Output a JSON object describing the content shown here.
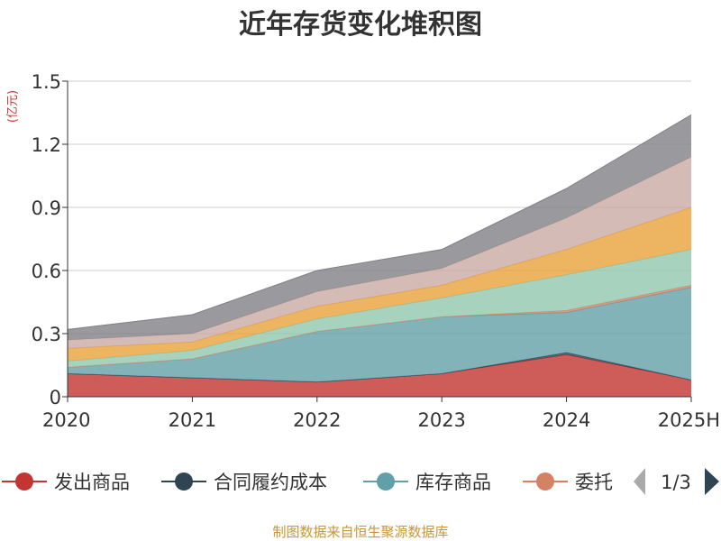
{
  "chart_data": {
    "type": "area",
    "stacked": true,
    "title": "近年存货变化堆积图",
    "unit_label": "(亿元)",
    "categories": [
      "2020",
      "2021",
      "2022",
      "2023",
      "2024",
      "2025H"
    ],
    "ylim": [
      0,
      1.5
    ],
    "yticks": [
      {
        "value": 0,
        "label": "0"
      },
      {
        "value": 0.3,
        "label": "0.3"
      },
      {
        "value": 0.6,
        "label": "0.6"
      },
      {
        "value": 0.9,
        "label": "0.9"
      },
      {
        "value": 1.2,
        "label": "1.2"
      },
      {
        "value": 1.5,
        "label": "1.5"
      }
    ],
    "grid": true,
    "series": [
      {
        "name": "发出商品",
        "color": "#c23531",
        "values": [
          0.11,
          0.09,
          0.07,
          0.11,
          0.2,
          0.08
        ]
      },
      {
        "name": "合同履约成本",
        "color": "#2f4554",
        "values": [
          0.0,
          0.0,
          0.0,
          0.0,
          0.01,
          0.0
        ]
      },
      {
        "name": "库存商品",
        "color": "#61a0a8",
        "values": [
          0.03,
          0.09,
          0.24,
          0.27,
          0.19,
          0.44
        ]
      },
      {
        "name": "委托加工物资",
        "color": "#d48265",
        "values": [
          0.0,
          0.0,
          0.0,
          0.0,
          0.01,
          0.01
        ]
      },
      {
        "name": "",
        "color": "#91c7ae",
        "values": [
          0.03,
          0.04,
          0.06,
          0.09,
          0.17,
          0.17
        ]
      },
      {
        "name": "",
        "color": "#e8a33b",
        "values": [
          0.06,
          0.04,
          0.06,
          0.06,
          0.12,
          0.2
        ]
      },
      {
        "name": "",
        "color": "#c9aaa4",
        "values": [
          0.04,
          0.04,
          0.07,
          0.08,
          0.15,
          0.24
        ]
      },
      {
        "name": "",
        "color": "#7f8086",
        "values": [
          0.05,
          0.09,
          0.1,
          0.09,
          0.14,
          0.2
        ]
      }
    ],
    "legend": {
      "placement": "bottom",
      "visible_items": [
        "发出商品",
        "合同履约成本",
        "库存商品",
        "委托"
      ],
      "page": "1/3"
    }
  },
  "source": "制图数据来自恒生聚源数据库"
}
